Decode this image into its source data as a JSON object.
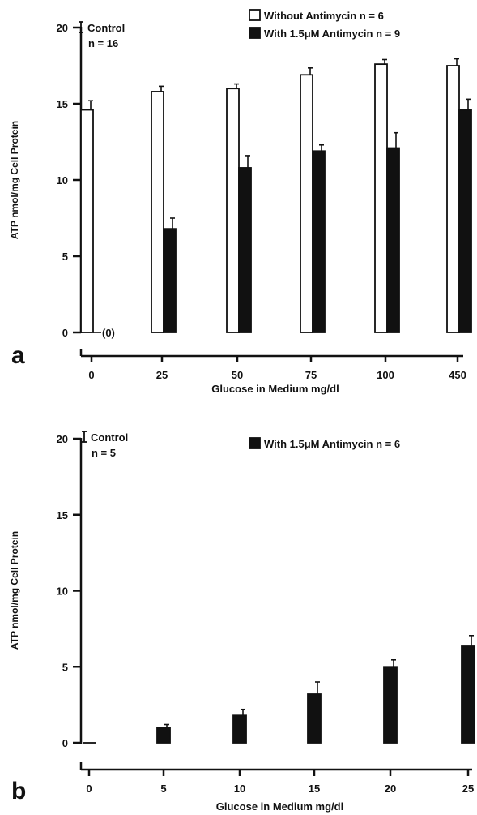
{
  "colors": {
    "ink": "#111111",
    "background": "#ffffff",
    "without_fill": "#ffffff",
    "with_fill": "#111111"
  },
  "chart_data": [
    {
      "panel": "a",
      "type": "bar",
      "ylabel": "ATP nmol/mg Cell Protein",
      "xlabel": "Glucose in Medium mg/dl",
      "ylim": [
        0,
        20
      ],
      "yticks": [
        0,
        5,
        10,
        15,
        20
      ],
      "categories": [
        "0",
        "25",
        "50",
        "75",
        "100",
        "450"
      ],
      "control": {
        "label": "Control",
        "n_label": "n = 16"
      },
      "zero_annotation": "(0)",
      "series": [
        {
          "name": "Without Antimycin",
          "legend": "Without  Antimycin  n = 6",
          "fill": "open",
          "values": [
            14.6,
            15.8,
            16.0,
            16.9,
            17.6,
            17.5
          ],
          "errors": [
            0.6,
            0.35,
            0.3,
            0.45,
            0.3,
            0.45
          ]
        },
        {
          "name": "With 1.5μM Antimycin",
          "legend": "With 1.5μM Antimycin n = 9",
          "fill": "solid",
          "values": [
            0,
            6.8,
            10.8,
            11.9,
            12.1,
            14.6
          ],
          "errors": [
            0,
            0.7,
            0.8,
            0.4,
            1.0,
            0.7
          ]
        }
      ]
    },
    {
      "panel": "b",
      "type": "bar",
      "ylabel": "ATP nmol/mg Cell Protein",
      "xlabel": "Glucose in Medium mg/dl",
      "ylim": [
        0,
        20
      ],
      "yticks": [
        0,
        5,
        10,
        15,
        20
      ],
      "categories": [
        "0",
        "5",
        "10",
        "15",
        "20",
        "25"
      ],
      "control": {
        "label": "Control",
        "n_label": "n = 5"
      },
      "series": [
        {
          "name": "With 1.5μM Antimycin",
          "legend": "With 1.5μM Antimycin   n = 6",
          "fill": "solid",
          "values": [
            0,
            1.0,
            1.8,
            3.2,
            5.0,
            6.4
          ],
          "errors": [
            0,
            0.2,
            0.4,
            0.8,
            0.45,
            0.65
          ]
        }
      ]
    }
  ]
}
